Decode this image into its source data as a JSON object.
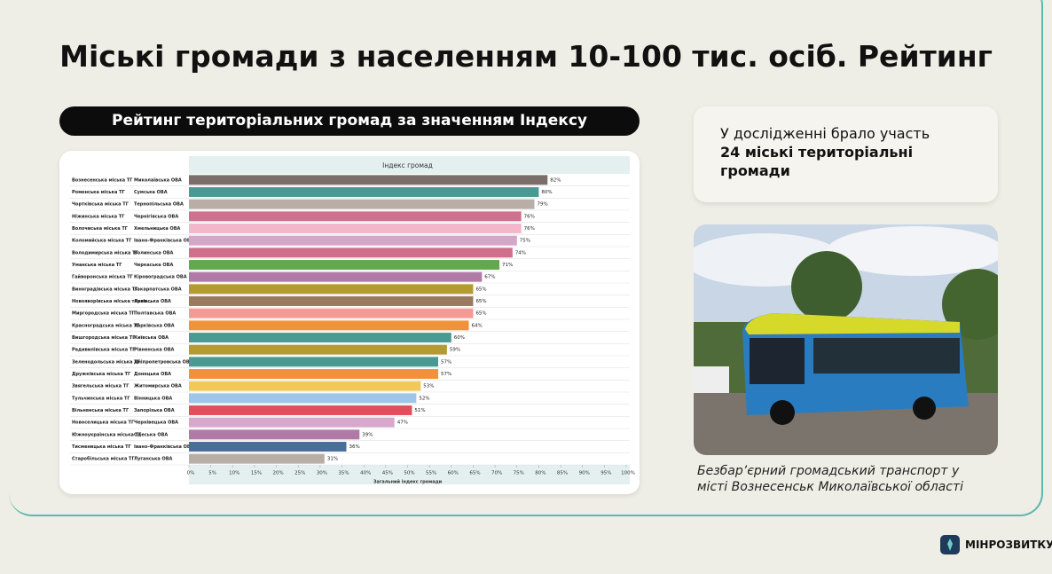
{
  "title": "Міські громади з населенням 10-100 тис. осіб. Рейтинг",
  "banner": "Рейтинг територіальних громад за значенням Індексу",
  "info": {
    "text": "У дослідженні брало участь",
    "highlight": "24 міські територіальні громади"
  },
  "caption": "Безбар’єрний громадський транспорт у місті Вознесенськ Миколаївської області",
  "logo": "МІНРОЗВИТКУ",
  "chart_data": {
    "type": "bar",
    "orientation": "horizontal",
    "title": "Індекс громад",
    "x_label": "Загальний індекс громади",
    "categories": [
      "Вознесенська міська ТГ",
      "Роменська міська ТГ",
      "Чортківська міська ТГ",
      "Ніжинська міська ТГ",
      "Волочиська міська ТГ",
      "Коломийська міська ТГ",
      "Володимирська міська ТГ",
      "Уманська міська ТГ",
      "Гайворонська міська ТГ",
      "Виноградівська міська ТГ",
      "Новояворівська міська терит...",
      "Миргородська міська ТГ",
      "Красноградська міська ТГ",
      "Вишгородська міська ТГ",
      "Радивилівська міська ТГ",
      "Зеленодольська міська ТГ",
      "Дружківська міська ТГ",
      "Звягельська міська ТГ",
      "Тульчинська міська ТГ",
      "Вільнянська міська ТГ",
      "Новоселицька міська ТГ",
      "Южноукраїнська міська ТГ",
      "Тисменицька міська ТГ",
      "Старобільська міська ТГ"
    ],
    "regions": [
      "Миколаївська ОВА",
      "Сумська ОВА",
      "Тернопільська ОВА",
      "Чернігівська ОВА",
      "Хмельницька ОВА",
      "Івано-Франківська ОВА",
      "Волинська ОВА",
      "Черкаська ОВА",
      "Кіровоградська ОВА",
      "Закарпатська ОВА",
      "Львівська ОВА",
      "Полтавська ОВА",
      "Харківська ОВА",
      "Київська ОВА",
      "Рівненська ОВА",
      "Дніпропетровська ОВА",
      "Донецька ОВА",
      "Житомирська ОВА",
      "Вінницька ОВА",
      "Запорізька ОВА",
      "Чернівецька ОВА",
      "Одеська ОВА",
      "Івано-Франківська ОВА",
      "Луганська ОВА"
    ],
    "values": [
      82,
      80,
      79,
      76,
      76,
      75,
      74,
      71,
      67,
      65,
      65,
      65,
      64,
      60,
      59,
      57,
      57,
      53,
      52,
      51,
      47,
      39,
      36,
      31
    ],
    "value_labels": [
      "82%",
      "80%",
      "79%",
      "76%",
      "76%",
      "75%",
      "74%",
      "71%",
      "67%",
      "65%",
      "65%",
      "65%",
      "64%",
      "60%",
      "59%",
      "57%",
      "57%",
      "53%",
      "52%",
      "51%",
      "47%",
      "39%",
      "36%",
      "31%"
    ],
    "colors": [
      "#7a6e6a",
      "#4a9a94",
      "#b8aea6",
      "#d0708f",
      "#f4b6cb",
      "#d4a6c8",
      "#d06e8c",
      "#63a84f",
      "#b07aa6",
      "#b49a32",
      "#9a7a5e",
      "#f39a94",
      "#f0923a",
      "#4a9a94",
      "#b49a32",
      "#4a9a94",
      "#f0923a",
      "#f2c85a",
      "#9fc6e6",
      "#e0505a",
      "#d8a8cc",
      "#b07aa6",
      "#4a6e9a",
      "#b8aea6"
    ],
    "xlim": [
      0,
      100
    ],
    "xticks": [
      {
        "value": 0,
        "label": "0%"
      },
      {
        "value": 5,
        "label": "5%"
      },
      {
        "value": 10,
        "label": "10%"
      },
      {
        "value": 15,
        "label": "15%"
      },
      {
        "value": 20,
        "label": "20%"
      },
      {
        "value": 25,
        "label": "25%"
      },
      {
        "value": 30,
        "label": "30%"
      },
      {
        "value": 35,
        "label": "35%"
      },
      {
        "value": 40,
        "label": "40%"
      },
      {
        "value": 45,
        "label": "45%"
      },
      {
        "value": 50,
        "label": "50%"
      },
      {
        "value": 55,
        "label": "55%"
      },
      {
        "value": 60,
        "label": "60%"
      },
      {
        "value": 65,
        "label": "65%"
      },
      {
        "value": 70,
        "label": "70%"
      },
      {
        "value": 75,
        "label": "75%"
      },
      {
        "value": 80,
        "label": "80%"
      },
      {
        "value": 85,
        "label": "85%"
      },
      {
        "value": 90,
        "label": "90%"
      },
      {
        "value": 95,
        "label": "95%"
      },
      {
        "value": 100,
        "label": "100%"
      }
    ]
  }
}
